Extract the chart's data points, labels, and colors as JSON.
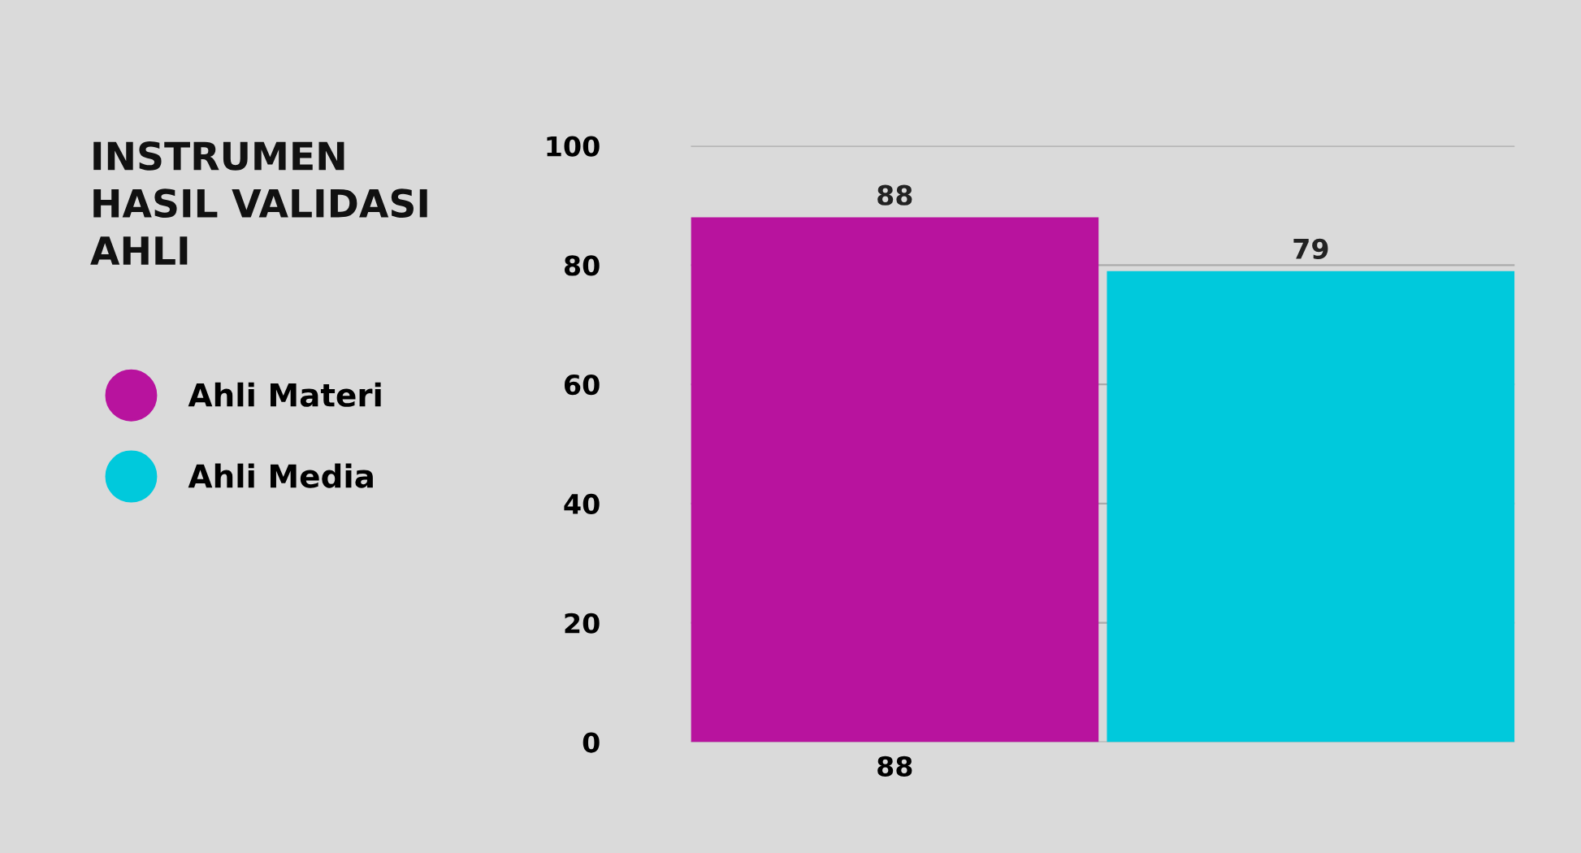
{
  "chart_data": {
    "type": "bar",
    "title": "INSTRUMEN\nHASIL VALIDASI\nAHLI",
    "categories": [
      "88",
      null
    ],
    "series": [
      {
        "name": "Ahli Materi",
        "color": "#b8139e",
        "values": [
          88,
          null
        ]
      },
      {
        "name": "Ahli Media",
        "color": "#00c9dc",
        "values": [
          null,
          79
        ]
      }
    ],
    "ylim": [
      0,
      100
    ],
    "yticks": [
      0,
      20,
      40,
      60,
      80,
      100
    ],
    "grid": "y",
    "legend": "left",
    "data_labels": true
  }
}
